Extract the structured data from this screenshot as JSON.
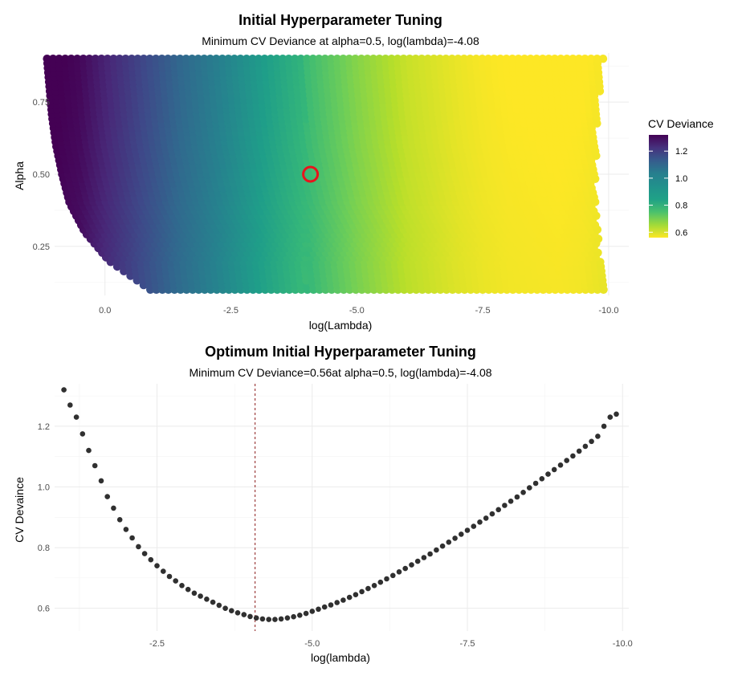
{
  "chart_data": [
    {
      "type": "heatmap",
      "title": "Initial Hyperparameter Tuning",
      "subtitle": "Minimum CV Deviance at alpha=0.5, log(lambda)=-4.08",
      "xlabel": "log(Lambda)",
      "ylabel": "Alpha",
      "x_reversed": true,
      "xlim": [
        1.0,
        -10.4
      ],
      "ylim": [
        0.08,
        0.92
      ],
      "x_ticks": [
        0.0,
        -2.5,
        -5.0,
        -7.5,
        -10.0
      ],
      "x_tick_labels": [
        "0.0",
        "-2.5",
        "-5.0",
        "-7.5",
        "-10.0"
      ],
      "y_ticks": [
        0.25,
        0.5,
        0.75
      ],
      "y_tick_labels": [
        "0.25",
        "0.50",
        "0.75"
      ],
      "alpha_range": [
        0.1,
        0.9
      ],
      "loglambda_max_by_alpha": [
        [
          0.1,
          -0.9
        ],
        [
          0.2,
          -0.08
        ],
        [
          0.3,
          0.4
        ],
        [
          0.4,
          0.7
        ],
        [
          0.5,
          0.85
        ],
        [
          0.6,
          0.97
        ],
        [
          0.7,
          1.05
        ],
        [
          0.8,
          1.1
        ],
        [
          0.9,
          1.15
        ]
      ],
      "loglambda_min": -9.9,
      "fill_variable": "CV Deviance",
      "fill_profile_loglambda": [
        -1.0,
        -0.5,
        0.0,
        0.5,
        1.0,
        1.5,
        2.0,
        2.5,
        3.0,
        3.5,
        4.0,
        4.5,
        5.0,
        5.5,
        6.0,
        6.5,
        7.0,
        7.5,
        8.0,
        8.5,
        9.0,
        9.5,
        10.0
      ],
      "fill_profile_deviance": [
        1.32,
        1.3,
        1.24,
        1.18,
        1.12,
        1.06,
        1.01,
        0.96,
        0.91,
        0.86,
        0.81,
        0.76,
        0.71,
        0.67,
        0.63,
        0.61,
        0.59,
        0.575,
        0.566,
        0.563,
        0.56,
        0.565,
        0.58
      ],
      "highlight": {
        "alpha": 0.5,
        "loglambda": -4.08,
        "color": "#e8141c"
      },
      "legend": {
        "title": "CV Deviance",
        "breaks": [
          1.2,
          1.0,
          0.8,
          0.6
        ],
        "break_labels": [
          "1.2",
          "1.0",
          "0.8",
          "0.6"
        ],
        "range": [
          0.56,
          1.32
        ],
        "placement": "right"
      },
      "colormap": "viridis"
    },
    {
      "type": "scatter",
      "title": "Optimum Initial Hyperparameter Tuning",
      "subtitle": "Minimum CV Deviance=0.56at alpha=0.5, log(lambda)=-4.08",
      "xlabel": "log(lambda)",
      "ylabel": "CV Devaince",
      "x_reversed": true,
      "xlim": [
        -0.85,
        -10.1
      ],
      "ylim": [
        0.525,
        1.34
      ],
      "x_ticks": [
        -2.5,
        -5.0,
        -7.5,
        -10.0
      ],
      "x_tick_labels": [
        "-2.5",
        "-5.0",
        "-7.5",
        "-10.0"
      ],
      "y_ticks": [
        0.6,
        0.8,
        1.0,
        1.2
      ],
      "y_tick_labels": [
        "0.6",
        "0.8",
        "1.0",
        "1.2"
      ],
      "vline": {
        "x": -4.08,
        "color": "#8b1a1a",
        "style": "dashed"
      },
      "point_color": "#303030",
      "x": [
        -1.0,
        -1.1,
        -1.2,
        -1.3,
        -1.4,
        -1.5,
        -1.6,
        -1.7,
        -1.8,
        -1.9,
        -2.0,
        -2.1,
        -2.2,
        -2.3,
        -2.4,
        -2.5,
        -2.6,
        -2.7,
        -2.8,
        -2.9,
        -3.0,
        -3.1,
        -3.2,
        -3.3,
        -3.4,
        -3.5,
        -3.6,
        -3.7,
        -3.8,
        -3.9,
        -4.0,
        -4.1,
        -4.2,
        -4.3,
        -4.4,
        -4.5,
        -4.6,
        -4.7,
        -4.8,
        -4.9,
        -5.0,
        -5.1,
        -5.2,
        -5.3,
        -5.4,
        -5.5,
        -5.6,
        -5.7,
        -5.8,
        -5.9,
        -6.0,
        -6.1,
        -6.2,
        -6.3,
        -6.4,
        -6.5,
        -6.6,
        -6.7,
        -6.8,
        -6.9,
        -7.0,
        -7.1,
        -7.2,
        -7.3,
        -7.4,
        -7.5,
        -7.6,
        -7.7,
        -7.8,
        -7.9,
        -8.0,
        -8.1,
        -8.2,
        -8.3,
        -8.4,
        -8.5,
        -8.6,
        -8.7,
        -8.8,
        -8.9,
        -9.0,
        -9.1,
        -9.2,
        -9.3,
        -9.4,
        -9.5,
        -9.6,
        -9.7,
        -9.8,
        -9.9
      ],
      "y": [
        1.32,
        1.27,
        1.23,
        1.175,
        1.12,
        1.07,
        1.02,
        0.968,
        0.93,
        0.892,
        0.86,
        0.832,
        0.803,
        0.78,
        0.76,
        0.74,
        0.722,
        0.705,
        0.69,
        0.675,
        0.662,
        0.65,
        0.64,
        0.63,
        0.62,
        0.61,
        0.6,
        0.592,
        0.585,
        0.579,
        0.573,
        0.568,
        0.565,
        0.563,
        0.563,
        0.565,
        0.568,
        0.572,
        0.577,
        0.583,
        0.59,
        0.597,
        0.604,
        0.611,
        0.619,
        0.627,
        0.636,
        0.645,
        0.655,
        0.665,
        0.675,
        0.686,
        0.697,
        0.708,
        0.72,
        0.731,
        0.743,
        0.755,
        0.767,
        0.779,
        0.792,
        0.805,
        0.818,
        0.831,
        0.844,
        0.857,
        0.87,
        0.884,
        0.897,
        0.911,
        0.925,
        0.939,
        0.953,
        0.967,
        0.982,
        0.997,
        1.012,
        1.027,
        1.042,
        1.057,
        1.072,
        1.087,
        1.102,
        1.118,
        1.134,
        1.15,
        1.167,
        1.2,
        1.23,
        1.24
      ]
    }
  ]
}
